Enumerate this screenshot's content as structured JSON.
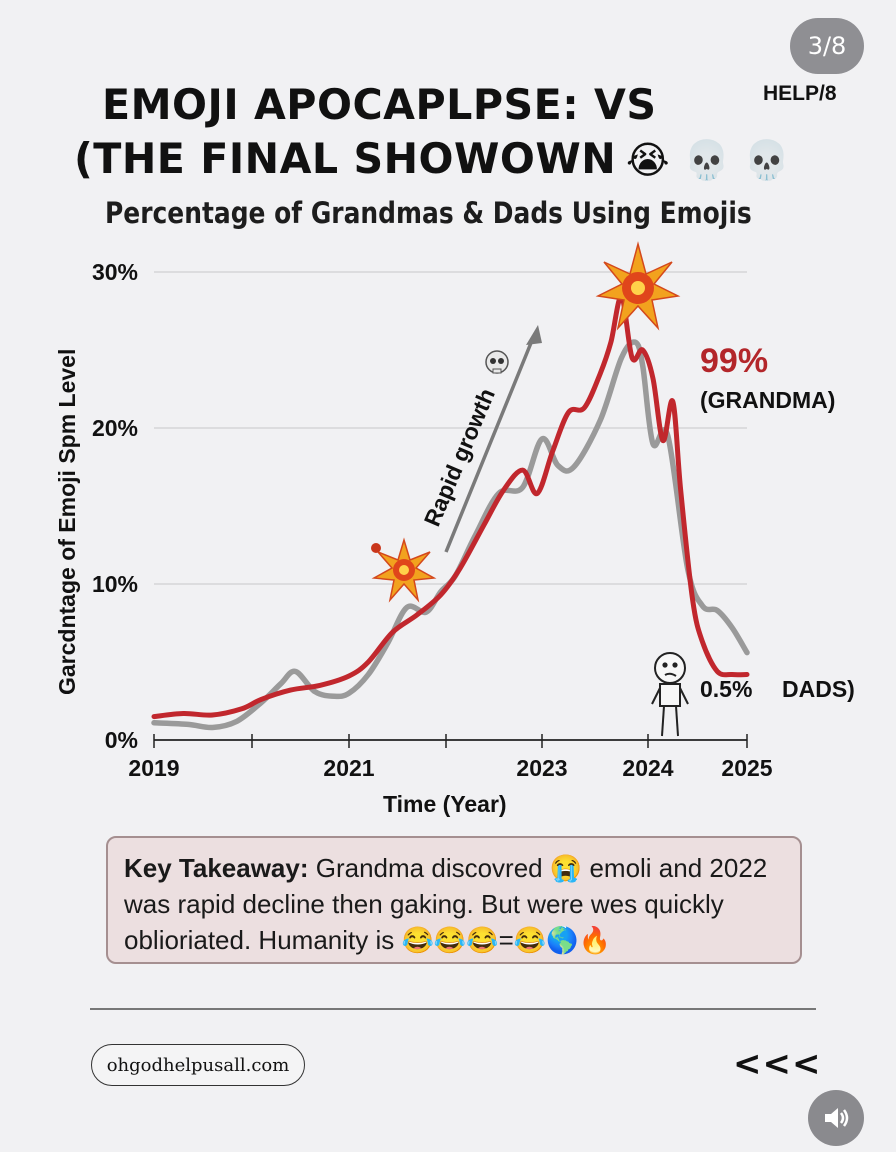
{
  "page_indicator": "3/8",
  "help_label": "HELP/8",
  "title_line1": "EMOJI APOCAPLPSE: VS",
  "title_line2": "(THE FINAL SHOWOWN",
  "title_emojis": "😭 💀 💀",
  "subtitle": "Percentage of Grandmas & Dads Using Emojis",
  "chart_data": {
    "type": "line",
    "ylabel": "Garcdntage of Emoji Spm Level",
    "xlabel": "Time (Year)",
    "y_ticks": [
      "0%",
      "10%",
      "20%",
      "30%"
    ],
    "x_ticks": [
      "2019",
      "2021",
      "2023",
      "2024",
      "2025"
    ],
    "x_tick_values": [
      2019,
      2021,
      2023,
      2024,
      2025
    ],
    "ylim": [
      0,
      30
    ],
    "xlim": [
      2019,
      2025
    ],
    "grid": true,
    "series": [
      {
        "color": "#c1272d",
        "x": [
          2019,
          2019.3,
          2019.6,
          2019.9,
          2020.1,
          2020.4,
          2020.7,
          2021,
          2021.2,
          2021.45,
          2021.7,
          2021.95,
          2022.15,
          2022.4,
          2022.6,
          2022.8,
          2022.95,
          2023.1,
          2023.25,
          2023.4,
          2023.55,
          2023.65,
          2023.75,
          2023.85,
          2023.95,
          2024.05,
          2024.15,
          2024.25,
          2024.33,
          2024.45,
          2024.55,
          2024.7,
          2024.85,
          2025
        ],
        "y": [
          1.5,
          1.7,
          1.6,
          2,
          2.6,
          3.2,
          3.5,
          4.1,
          5,
          6.9,
          8,
          9.3,
          11,
          13.8,
          16,
          17.3,
          15.8,
          18.5,
          21,
          21.3,
          23.5,
          25.5,
          28.4,
          24.5,
          25,
          23.2,
          19.2,
          21.7,
          16,
          9,
          6.3,
          4.4,
          4.2,
          4.2
        ]
      },
      {
        "color": "#9a9a9a",
        "x": [
          2019,
          2019.35,
          2019.6,
          2019.85,
          2020.1,
          2020.3,
          2020.45,
          2020.65,
          2020.85,
          2021,
          2021.2,
          2021.4,
          2021.6,
          2021.8,
          2021.95,
          2022.1,
          2022.3,
          2022.55,
          2022.8,
          2023,
          2023.15,
          2023.3,
          2023.55,
          2023.75,
          2023.88,
          2023.95,
          2024.05,
          2024.2,
          2024.4,
          2024.55,
          2024.7,
          2024.85,
          2025
        ],
        "y": [
          1.1,
          1,
          0.8,
          1.2,
          2.4,
          3.6,
          4.4,
          3.1,
          2.8,
          3,
          4.2,
          6.2,
          8.5,
          8.2,
          9.5,
          10.5,
          13,
          15.8,
          16.2,
          19.3,
          17.6,
          17.5,
          20.5,
          24.5,
          25.5,
          24,
          19,
          19.5,
          11,
          8.6,
          8.3,
          7.2,
          5.6
        ]
      }
    ],
    "annotations": {
      "growth_label": "Rapid growth",
      "grandma_value": "99%",
      "grandma_label": "(GRANDMA)",
      "dads_value": "0.5%",
      "dads_label": "DADS)"
    }
  },
  "takeaway": {
    "label": "Key Takeaway:",
    "text": "Grandma discovred 😭 emoli and 2022 was rapid decline  then gaking. But were wes quickly oblioriated. Humanity is 😂😂😂=😂🌎🔥"
  },
  "footer": {
    "site": "ohgodhelpusall.com",
    "back_arrows": "<<<"
  },
  "colors": {
    "grandma_line": "#c1272d",
    "dads_line": "#9a9a9a",
    "background": "#f1f1f3",
    "takeaway_bg": "#ecdfe0"
  },
  "icons": {
    "sound": "speaker-icon",
    "explosion": "explosion-icon",
    "skull": "skull-icon",
    "stick_figure": "stick-figure-icon"
  }
}
